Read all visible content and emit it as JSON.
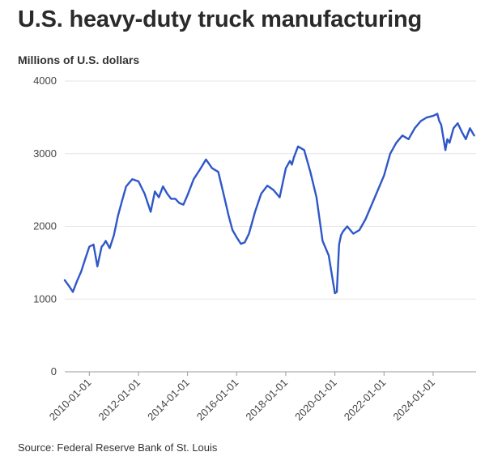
{
  "title": "U.S. heavy-duty truck manufacturing",
  "units_label": "Millions of U.S. dollars",
  "source": "Source: Federal Reserve Bank of St. Louis",
  "colors": {
    "line": "#2f57c9",
    "grid": "#e6e6e6",
    "axis": "#999999"
  },
  "chart_data": {
    "type": "line",
    "title": "U.S. heavy-duty truck manufacturing",
    "ylabel": "Millions of U.S. dollars",
    "xlabel": "",
    "ylim": [
      0,
      4000
    ],
    "xlim": [
      2009.0,
      2025.75
    ],
    "y_ticks": [
      0,
      1000,
      2000,
      3000,
      4000
    ],
    "y_tick_labels": [
      "0",
      "1000",
      "2000",
      "3000",
      "4000"
    ],
    "x_ticks": [
      2010,
      2012,
      2014,
      2016,
      2018,
      2020,
      2022,
      2024
    ],
    "x_tick_labels": [
      "2010-01-01",
      "2012-01-01",
      "2014-01-01",
      "2016-01-01",
      "2018-01-01",
      "2020-01-01",
      "2022-01-01",
      "2024-01-01"
    ],
    "grid": true,
    "series": [
      {
        "name": "Heavy-duty truck manufacturing",
        "x": [
          2009.0,
          2009.17,
          2009.33,
          2009.5,
          2009.67,
          2009.83,
          2010.0,
          2010.17,
          2010.33,
          2010.5,
          2010.58,
          2010.67,
          2010.83,
          2011.0,
          2011.17,
          2011.33,
          2011.5,
          2011.75,
          2012.0,
          2012.25,
          2012.5,
          2012.67,
          2012.83,
          2013.0,
          2013.17,
          2013.33,
          2013.5,
          2013.67,
          2013.83,
          2014.0,
          2014.25,
          2014.5,
          2014.75,
          2015.0,
          2015.25,
          2015.5,
          2015.67,
          2015.83,
          2016.0,
          2016.17,
          2016.33,
          2016.5,
          2016.75,
          2017.0,
          2017.25,
          2017.5,
          2017.75,
          2018.0,
          2018.17,
          2018.25,
          2018.33,
          2018.5,
          2018.75,
          2019.0,
          2019.25,
          2019.5,
          2019.75,
          2020.0,
          2020.08,
          2020.17,
          2020.25,
          2020.33,
          2020.5,
          2020.75,
          2021.0,
          2021.25,
          2021.5,
          2021.75,
          2022.0,
          2022.25,
          2022.5,
          2022.75,
          2023.0,
          2023.25,
          2023.5,
          2023.75,
          2024.0,
          2024.17,
          2024.25,
          2024.33,
          2024.5,
          2024.58,
          2024.67,
          2024.83,
          2025.0,
          2025.17,
          2025.33,
          2025.5,
          2025.67
        ],
        "values": [
          1260,
          1180,
          1100,
          1250,
          1380,
          1550,
          1720,
          1750,
          1450,
          1720,
          1750,
          1800,
          1700,
          1880,
          2150,
          2350,
          2550,
          2650,
          2620,
          2450,
          2200,
          2480,
          2400,
          2550,
          2450,
          2380,
          2380,
          2320,
          2300,
          2430,
          2650,
          2780,
          2920,
          2800,
          2750,
          2400,
          2150,
          1950,
          1850,
          1760,
          1780,
          1900,
          2200,
          2450,
          2560,
          2500,
          2400,
          2800,
          2900,
          2850,
          2950,
          3100,
          3050,
          2750,
          2400,
          1800,
          1600,
          1080,
          1100,
          1750,
          1880,
          1930,
          2000,
          1900,
          1950,
          2100,
          2300,
          2500,
          2700,
          3000,
          3150,
          3250,
          3200,
          3350,
          3450,
          3500,
          3520,
          3550,
          3450,
          3400,
          3050,
          3200,
          3150,
          3350,
          3420,
          3300,
          3200,
          3350,
          3250
        ]
      }
    ]
  }
}
